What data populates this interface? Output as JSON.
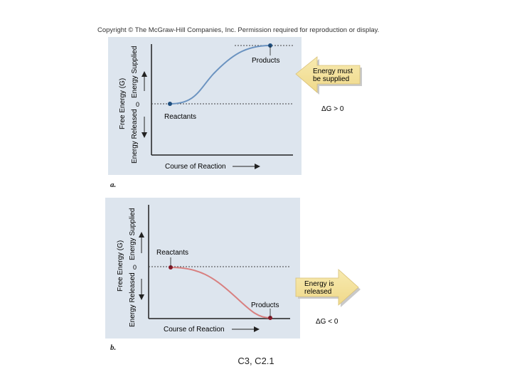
{
  "copyright": "Copyright © The McGraw-Hill Companies, Inc. Permission required for reproduction or display.",
  "panel_a": {
    "letter": "a.",
    "y_label_left": "Energy Released",
    "y_label_mid": "Free Energy (G)",
    "y_label_right": "Energy Supplied",
    "zero_label": "0",
    "start_label": "Reactants",
    "end_label": "Products",
    "x_label": "Course of Reaction",
    "arrow_text_1": "Energy must",
    "arrow_text_2": "be supplied",
    "delta_g": "ΔG > 0",
    "curve_color": "#6b93c0",
    "point_color": "#1e4e7e"
  },
  "panel_b": {
    "letter": "b.",
    "y_label_left": "Energy Released",
    "y_label_mid": "Free Energy (G)",
    "y_label_right": "Energy Supplied",
    "zero_label": "0",
    "start_label": "Reactants",
    "end_label": "Products",
    "x_label": "Course of Reaction",
    "arrow_text_1": "Energy is",
    "arrow_text_2": "released",
    "delta_g": "ΔG < 0",
    "curve_color": "#d88080",
    "point_color": "#8b1a2a"
  },
  "footer": "C3, C2.1"
}
